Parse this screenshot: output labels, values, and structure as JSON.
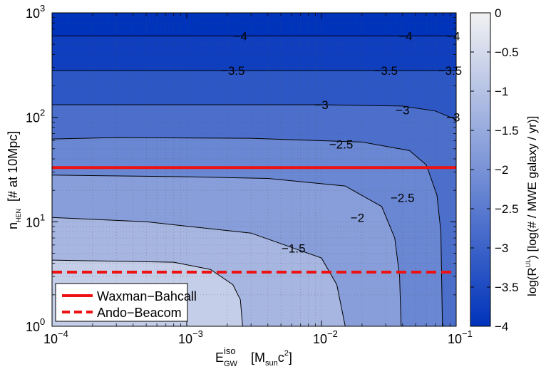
{
  "chart_data": {
    "type": "contour",
    "x_scale": "log",
    "y_scale": "log",
    "xlim": [
      0.0001,
      0.1
    ],
    "ylim": [
      1,
      1000
    ],
    "xlabel": {
      "base": "E",
      "sup": "iso",
      "sub": "GW",
      "unit_open": "[M",
      "unit_sub": "sun",
      "unit_mid": "c",
      "unit_sup": "2",
      "unit_close": "]"
    },
    "ylabel": {
      "base": "n",
      "sub": "HEN",
      "rest": "[# at 10Mpc]"
    },
    "x_ticks": [
      {
        "value": 0.0001,
        "base": "10",
        "exp": "−4"
      },
      {
        "value": 0.001,
        "base": "10",
        "exp": "−3"
      },
      {
        "value": 0.01,
        "base": "10",
        "exp": "−2"
      },
      {
        "value": 0.1,
        "base": "10",
        "exp": "−1"
      }
    ],
    "y_ticks": [
      {
        "value": 1,
        "base": "10",
        "exp": "0"
      },
      {
        "value": 10,
        "base": "10",
        "exp": "1"
      },
      {
        "value": 100,
        "base": "10",
        "exp": "2"
      },
      {
        "value": 1000,
        "base": "10",
        "exp": "3"
      }
    ],
    "grid": true,
    "colorbar": {
      "range": [
        -4,
        0
      ],
      "ticks": [
        "0",
        "−0.5",
        "−1",
        "−1.5",
        "−2",
        "−2.5",
        "−3",
        "−3.5",
        "−4"
      ],
      "label": {
        "pre": "log(R",
        "sup": "UL",
        "post": ") [log(# / MWE galaxy / yr)]"
      },
      "color_low": "#0033bb",
      "color_high": "#f2f2f2"
    },
    "contours": [
      {
        "level": -4,
        "label": "−4",
        "points": [
          [
            0.0001,
            600
          ],
          [
            0.1,
            600
          ]
        ],
        "labels_at": [
          [
            0.0025,
            600
          ],
          [
            0.042,
            600
          ],
          [
            0.095,
            600
          ]
        ]
      },
      {
        "level": -3.5,
        "label": "−3.5",
        "points": [
          [
            0.0001,
            280
          ],
          [
            0.1,
            280
          ]
        ],
        "labels_at": [
          [
            0.0022,
            280
          ],
          [
            0.03,
            280
          ],
          [
            0.09,
            280
          ]
        ]
      },
      {
        "level": -3,
        "label": "−3",
        "points": [
          [
            0.0001,
            132
          ],
          [
            0.01,
            132
          ],
          [
            0.04,
            128
          ],
          [
            0.07,
            115
          ],
          [
            0.1,
            95
          ]
        ],
        "labels_at": [
          [
            0.01,
            132
          ],
          [
            0.04,
            117
          ],
          [
            0.095,
            100
          ]
        ]
      },
      {
        "level": -2.5,
        "label": "−2.5",
        "points": [
          [
            0.0001,
            62
          ],
          [
            0.0003,
            64
          ],
          [
            0.003,
            63
          ],
          [
            0.02,
            58
          ],
          [
            0.045,
            48
          ],
          [
            0.06,
            35
          ],
          [
            0.072,
            18
          ],
          [
            0.077,
            8
          ],
          [
            0.079,
            1
          ]
        ],
        "labels_at": [
          [
            0.014,
            55
          ],
          [
            0.04,
            17
          ]
        ]
      },
      {
        "level": -2,
        "label": "−2",
        "points": [
          [
            0.0001,
            28
          ],
          [
            0.001,
            27
          ],
          [
            0.004,
            26
          ],
          [
            0.015,
            22
          ],
          [
            0.028,
            14
          ],
          [
            0.035,
            7
          ],
          [
            0.038,
            3
          ],
          [
            0.039,
            1
          ]
        ],
        "labels_at": [
          [
            0.0185,
            11
          ]
        ]
      },
      {
        "level": -1.5,
        "label": "−1.5",
        "points": [
          [
            0.0001,
            11
          ],
          [
            0.0005,
            10
          ],
          [
            0.003,
            7.8
          ],
          [
            0.01,
            4.5
          ],
          [
            0.013,
            2.5
          ],
          [
            0.015,
            1
          ]
        ],
        "labels_at": [
          [
            0.0062,
            5.6
          ]
        ]
      },
      {
        "level": -1,
        "label": "",
        "points": [
          [
            0.0001,
            4.3
          ],
          [
            0.0008,
            4.1
          ],
          [
            0.0015,
            3.5
          ],
          [
            0.0022,
            2.5
          ],
          [
            0.0025,
            1.8
          ],
          [
            0.0026,
            1
          ]
        ],
        "labels_at": []
      }
    ],
    "hlines": [
      {
        "name": "Waxman−Bahcall",
        "y": 33,
        "color": "#ee1111",
        "style": "solid"
      },
      {
        "name": "Ando−Beacom",
        "y": 3.3,
        "color": "#ee1111",
        "style": "dashed"
      }
    ],
    "legend": "bottom-left"
  }
}
